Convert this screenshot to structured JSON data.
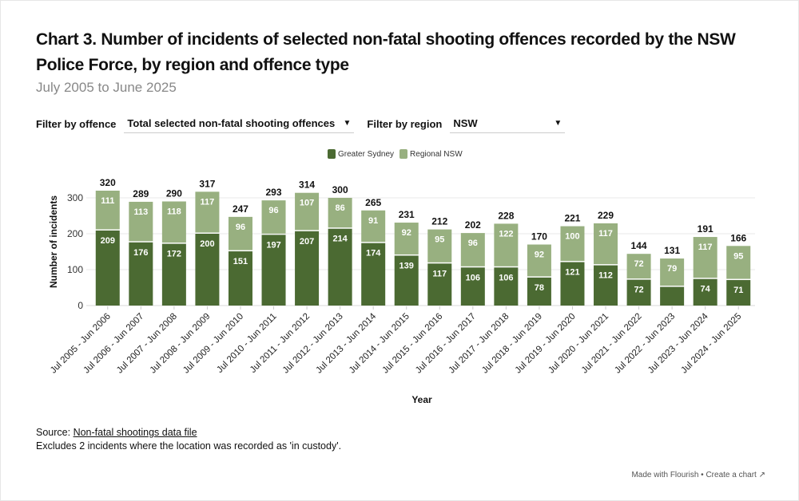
{
  "header": {
    "title": "Chart 3. Number of incidents of selected non-fatal shooting offences recorded by the NSW Police Force, by region and offence type",
    "subtitle": "July 2005 to June 2025"
  },
  "filters": {
    "offence_label": "Filter by offence",
    "offence_value": "Total selected non-fatal shooting offences",
    "region_label": "Filter by region",
    "region_value": "NSW"
  },
  "footer": {
    "source_prefix": "Source: ",
    "source_link": "Non-fatal shootings data file",
    "note": "Excludes 2 incidents where the location was recorded as 'in custody'.",
    "credit_made": "Made with Flourish",
    "credit_sep": " • ",
    "credit_create": "Create a chart",
    "external_icon": "external-link-icon"
  },
  "colors": {
    "greater_sydney": "#4b6a32",
    "regional_nsw": "#98b080",
    "gridline": "#e8e8e8"
  },
  "chart_data": {
    "type": "bar",
    "stacked": true,
    "title": "Chart 3. Number of incidents of selected non-fatal shooting offences recorded by the NSW Police Force, by region and offence type",
    "subtitle": "July 2005 to June 2025",
    "xlabel": "Year",
    "ylabel": "Number of incidents",
    "ylim": [
      0,
      330
    ],
    "yticks": [
      0,
      100,
      200,
      300
    ],
    "grid": true,
    "legend_position": "top-center",
    "categories": [
      "Jul 2005 - Jun 2006",
      "Jul 2006 - Jun 2007",
      "Jul 2007 - Jun 2008",
      "Jul 2008 - Jun 2009",
      "Jul 2009 - Jun 2010",
      "Jul 2010 - Jun 2011",
      "Jul 2011 - Jun 2012",
      "Jul 2012 - Jun 2013",
      "Jul 2013 - Jun 2014",
      "Jul 2014 - Jun 2015",
      "Jul 2015 - Jun 2016",
      "Jul 2016 - Jun 2017",
      "Jul 2017 - Jun 2018",
      "Jul 2018 - Jun 2019",
      "Jul 2019 - Jun 2020",
      "Jul 2020 - Jun 2021",
      "Jul 2021 - Jun 2022",
      "Jul 2022 - Jun 2023",
      "Jul 2023 - Jun 2024",
      "Jul 2024 - Jun 2025"
    ],
    "series": [
      {
        "name": "Greater Sydney",
        "values": [
          209,
          176,
          172,
          200,
          151,
          197,
          207,
          214,
          174,
          139,
          117,
          106,
          106,
          78,
          121,
          112,
          72,
          52,
          74,
          71
        ],
        "labels_shown": [
          true,
          true,
          true,
          true,
          true,
          true,
          true,
          true,
          true,
          true,
          true,
          true,
          true,
          true,
          true,
          true,
          true,
          false,
          true,
          true
        ]
      },
      {
        "name": "Regional NSW",
        "values": [
          111,
          113,
          118,
          117,
          96,
          96,
          107,
          86,
          91,
          92,
          95,
          96,
          122,
          92,
          100,
          117,
          72,
          79,
          117,
          95
        ]
      }
    ],
    "totals": [
      320,
      289,
      290,
      317,
      247,
      293,
      314,
      300,
      265,
      231,
      212,
      202,
      228,
      170,
      221,
      229,
      144,
      131,
      191,
      166
    ]
  }
}
